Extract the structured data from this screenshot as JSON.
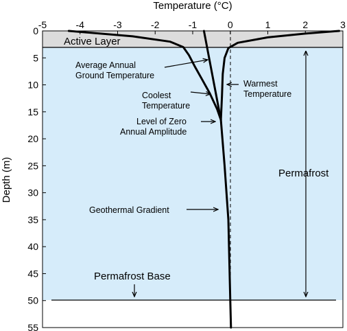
{
  "figure": {
    "title_top": "Temperature (°C)",
    "ylabel": "Depth (m)",
    "labels": {
      "active_layer": "Active Layer",
      "avg_annual_line1": "Average Annual",
      "avg_annual_line2": "Ground Temperature",
      "warmest_line1": "Warmest",
      "warmest_line2": "Temperature",
      "coolest_line1": "Coolest",
      "coolest_line2": "Temperature",
      "zero_amp_line1": "Level of Zero",
      "zero_amp_line2": "Annual Amplitude",
      "permafrost": "Permafrost",
      "geothermal": "Geothermal Gradient",
      "permafrost_base": "Permafrost Base"
    },
    "colors": {
      "permafrost_fill": "#d6ecfa",
      "active_layer_fill": "#dcdcdc",
      "line": "#000000"
    }
  },
  "chart_data": {
    "type": "line",
    "xlabel": "Temperature (°C)",
    "ylabel": "Depth (m)",
    "xlim": [
      -5,
      3
    ],
    "ylim": [
      55,
      0
    ],
    "x_ticks": [
      -5,
      -4,
      -3,
      -2,
      -1,
      0,
      1,
      2,
      3
    ],
    "y_ticks": [
      0,
      5,
      10,
      15,
      20,
      25,
      30,
      35,
      40,
      45,
      50,
      55
    ],
    "regions": [
      {
        "name": "Active Layer",
        "depth_from": 0,
        "depth_to": 3.3
      },
      {
        "name": "Permafrost",
        "depth_from": 3.3,
        "depth_to": 50
      }
    ],
    "series": [
      {
        "name": "Coolest Temperature",
        "points": [
          [
            -4.3,
            0
          ],
          [
            -2.6,
            1.0
          ],
          [
            -1.6,
            2.0
          ],
          [
            -1.25,
            3.0
          ],
          [
            -1.1,
            4.5
          ],
          [
            -0.95,
            6.5
          ],
          [
            -0.75,
            9.0
          ],
          [
            -0.55,
            11.5
          ],
          [
            -0.35,
            14.5
          ],
          [
            -0.25,
            16.5
          ]
        ]
      },
      {
        "name": "Warmest Temperature",
        "points": [
          [
            2.9,
            0
          ],
          [
            2.0,
            0.5
          ],
          [
            1.0,
            1.2
          ],
          [
            0.2,
            2.2
          ],
          [
            -0.05,
            3.2
          ],
          [
            -0.15,
            5.0
          ],
          [
            -0.2,
            8.0
          ],
          [
            -0.22,
            12.0
          ],
          [
            -0.25,
            16.5
          ]
        ]
      },
      {
        "name": "Average Annual Ground Temperature",
        "points": [
          [
            -0.7,
            0
          ],
          [
            -0.25,
            16.5
          ]
        ]
      },
      {
        "name": "Geothermal Gradient",
        "points": [
          [
            -0.25,
            16.5
          ],
          [
            -0.15,
            25
          ],
          [
            -0.05,
            35
          ],
          [
            0,
            50
          ],
          [
            0.02,
            55
          ]
        ]
      }
    ],
    "zero_line": {
      "x": 0,
      "style": "dashed"
    },
    "annotations": [
      {
        "text": "Permafrost Base",
        "depth": 50
      },
      {
        "text": "Level of Zero Annual Amplitude",
        "depth": 16.5
      }
    ]
  }
}
